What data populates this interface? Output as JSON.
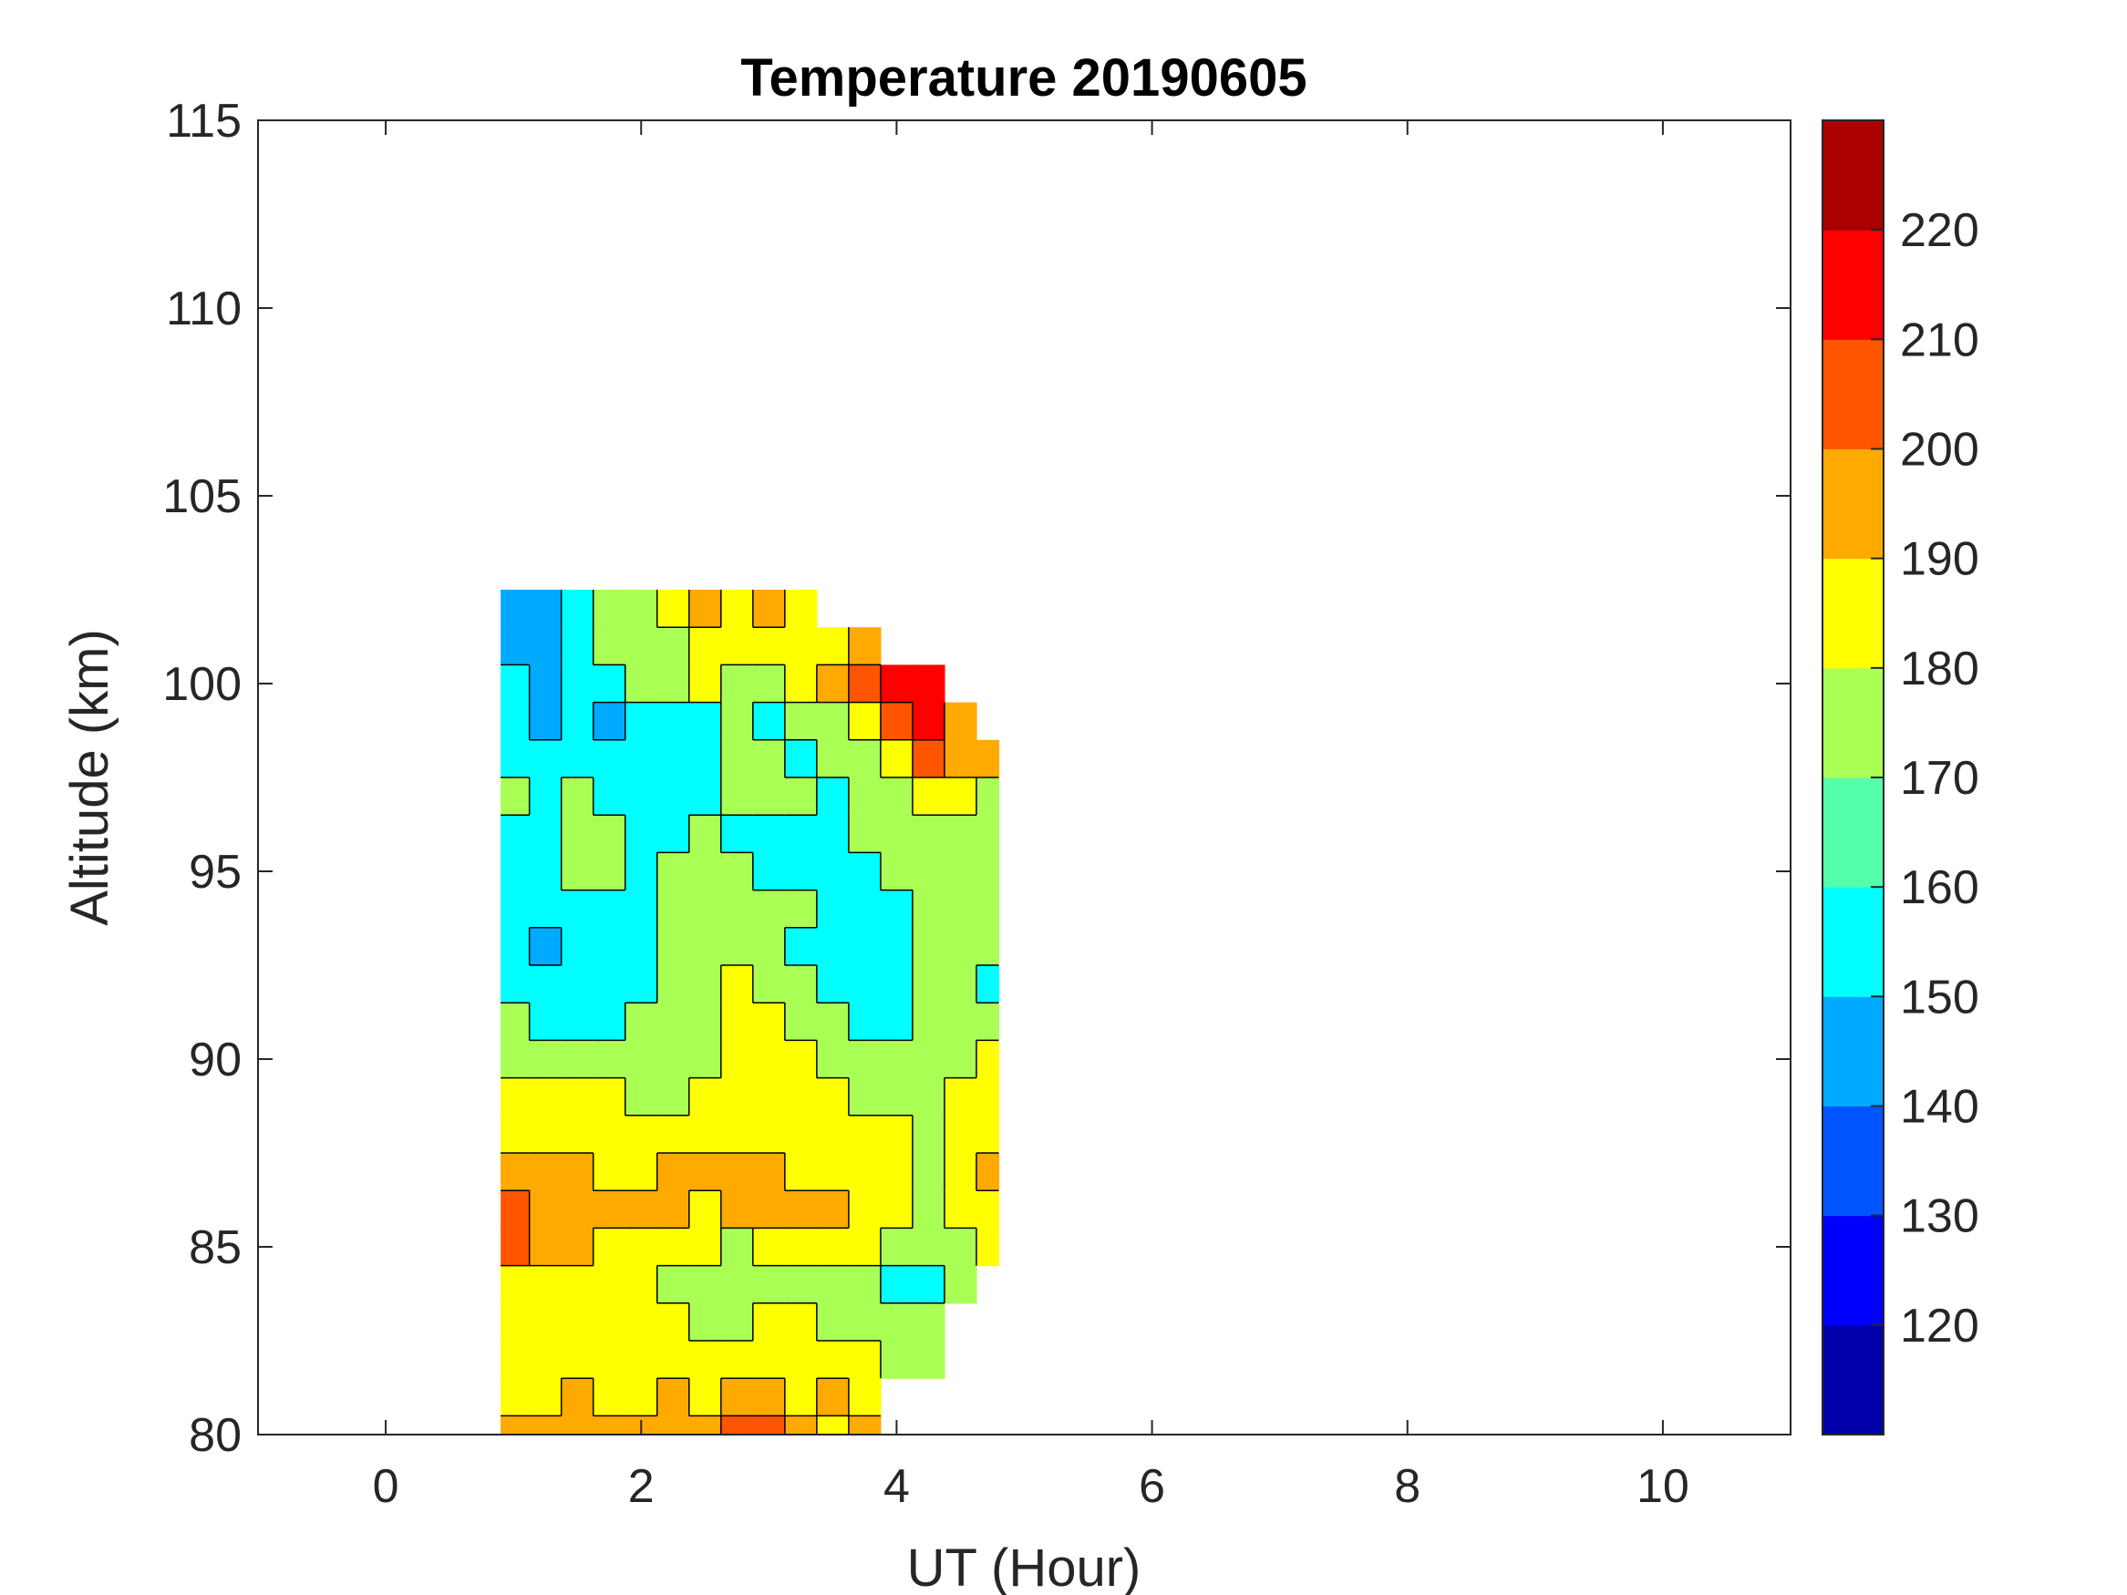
{
  "chart_data": {
    "type": "heatmap",
    "subtype": "filled-contour",
    "title": "Temperature 20190605",
    "xlabel": "UT (Hour)",
    "ylabel": "Altitude (km)",
    "xlim": [
      -1,
      11
    ],
    "ylim": [
      80,
      115
    ],
    "xticks": [
      0,
      2,
      4,
      6,
      8,
      10
    ],
    "yticks": [
      80,
      85,
      90,
      95,
      100,
      105,
      110,
      115
    ],
    "colorbar": {
      "range": [
        110,
        230
      ],
      "ticks": [
        120,
        130,
        140,
        150,
        160,
        170,
        180,
        190,
        200,
        210,
        220
      ],
      "levels": [
        110,
        120,
        130,
        140,
        150,
        160,
        170,
        180,
        190,
        200,
        210,
        220,
        230
      ],
      "colors": [
        "#0000aa",
        "#0000ff",
        "#0055ff",
        "#00aaff",
        "#00ffff",
        "#55ffaa",
        "#aaff55",
        "#ffff00",
        "#ffaa00",
        "#ff5500",
        "#ff0000",
        "#aa0000"
      ]
    },
    "x": [
      1.0,
      1.25,
      1.5,
      1.75,
      2.0,
      2.25,
      2.5,
      2.75,
      3.0,
      3.25,
      3.5,
      3.75,
      4.0,
      4.25,
      4.5,
      4.75
    ],
    "y": [
      102,
      101,
      100,
      99,
      98,
      97,
      96,
      95,
      94,
      93,
      92,
      91,
      90,
      89,
      88,
      87,
      86,
      85,
      84,
      83,
      82,
      81,
      80
    ],
    "z": [
      [
        145,
        145,
        155,
        175,
        175,
        185,
        195,
        185,
        195,
        185,
        null,
        null,
        null,
        null,
        null,
        null
      ],
      [
        145,
        145,
        155,
        175,
        175,
        175,
        185,
        185,
        185,
        185,
        185,
        195,
        null,
        null,
        null,
        null
      ],
      [
        155,
        145,
        155,
        155,
        175,
        175,
        185,
        175,
        175,
        185,
        195,
        205,
        215,
        215,
        null,
        null
      ],
      [
        155,
        145,
        155,
        145,
        155,
        155,
        155,
        175,
        155,
        175,
        175,
        185,
        205,
        215,
        195,
        null
      ],
      [
        155,
        155,
        155,
        155,
        155,
        155,
        155,
        175,
        175,
        155,
        175,
        175,
        185,
        205,
        195,
        195
      ],
      [
        175,
        155,
        175,
        155,
        155,
        155,
        155,
        175,
        175,
        175,
        155,
        175,
        175,
        185,
        185,
        175
      ],
      [
        155,
        155,
        175,
        175,
        155,
        155,
        175,
        155,
        155,
        155,
        155,
        175,
        175,
        175,
        175,
        175
      ],
      [
        155,
        155,
        175,
        175,
        155,
        175,
        175,
        175,
        155,
        155,
        155,
        155,
        175,
        175,
        175,
        175
      ],
      [
        155,
        155,
        155,
        155,
        155,
        175,
        175,
        175,
        175,
        175,
        155,
        155,
        155,
        175,
        175,
        175
      ],
      [
        155,
        145,
        155,
        155,
        155,
        175,
        175,
        175,
        175,
        155,
        155,
        155,
        155,
        175,
        175,
        175
      ],
      [
        155,
        155,
        155,
        155,
        155,
        175,
        175,
        185,
        175,
        175,
        155,
        155,
        155,
        175,
        175,
        155
      ],
      [
        175,
        155,
        155,
        155,
        175,
        175,
        175,
        185,
        185,
        175,
        175,
        155,
        155,
        175,
        175,
        175
      ],
      [
        175,
        175,
        175,
        175,
        175,
        175,
        175,
        185,
        185,
        185,
        175,
        175,
        175,
        175,
        175,
        185
      ],
      [
        185,
        185,
        185,
        185,
        175,
        175,
        185,
        185,
        185,
        185,
        185,
        175,
        175,
        175,
        185,
        185
      ],
      [
        185,
        185,
        185,
        185,
        185,
        185,
        185,
        185,
        185,
        185,
        185,
        185,
        185,
        175,
        185,
        185
      ],
      [
        195,
        195,
        195,
        185,
        185,
        195,
        195,
        195,
        195,
        185,
        185,
        185,
        185,
        175,
        185,
        195
      ],
      [
        205,
        195,
        195,
        195,
        195,
        195,
        185,
        195,
        195,
        195,
        195,
        185,
        185,
        175,
        185,
        185
      ],
      [
        205,
        195,
        195,
        185,
        185,
        185,
        185,
        175,
        185,
        185,
        185,
        185,
        175,
        175,
        175,
        185
      ],
      [
        185,
        185,
        185,
        185,
        185,
        175,
        175,
        175,
        175,
        175,
        175,
        175,
        155,
        155,
        175,
        null
      ],
      [
        185,
        185,
        185,
        185,
        185,
        185,
        175,
        175,
        185,
        185,
        175,
        175,
        175,
        175,
        null,
        null
      ],
      [
        185,
        185,
        185,
        185,
        185,
        185,
        185,
        185,
        185,
        185,
        185,
        185,
        175,
        175,
        null,
        null
      ],
      [
        185,
        185,
        195,
        185,
        185,
        195,
        185,
        195,
        195,
        185,
        195,
        185,
        null,
        null,
        null,
        null
      ],
      [
        195,
        195,
        195,
        195,
        195,
        195,
        195,
        205,
        205,
        195,
        185,
        195,
        null,
        null,
        null,
        null
      ]
    ]
  }
}
